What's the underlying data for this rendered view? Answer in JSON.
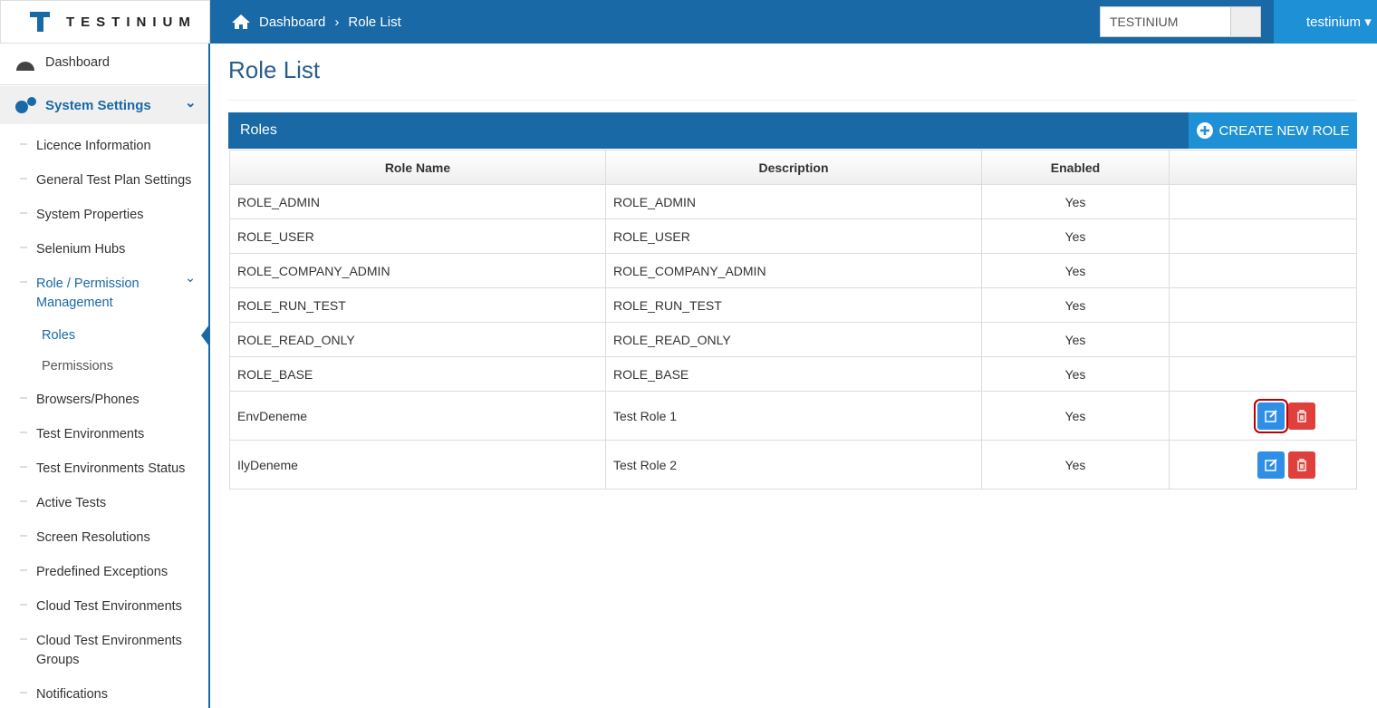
{
  "header": {
    "logo": "TESTINIUM",
    "breadcrumb": [
      "Dashboard",
      "Role List"
    ],
    "company_select": "TESTINIUM",
    "user": "testinium"
  },
  "sidebar": {
    "dashboard": "Dashboard",
    "section": "System Settings",
    "items": [
      {
        "label": "Licence Information"
      },
      {
        "label": "General Test Plan Settings"
      },
      {
        "label": "System Properties"
      },
      {
        "label": "Selenium Hubs"
      },
      {
        "label": "Role / Permission Management",
        "children": [
          "Roles",
          "Permissions"
        ]
      },
      {
        "label": "Browsers/Phones"
      },
      {
        "label": "Test Environments"
      },
      {
        "label": "Test Environments Status"
      },
      {
        "label": "Active Tests"
      },
      {
        "label": "Screen Resolutions"
      },
      {
        "label": "Predefined Exceptions"
      },
      {
        "label": "Cloud Test Environments"
      },
      {
        "label": "Cloud Test Environments Groups"
      },
      {
        "label": "Notifications"
      }
    ]
  },
  "page": {
    "title": "Role List",
    "panel_title": "Roles",
    "create_button": "CREATE NEW ROLE",
    "table": {
      "columns": [
        "Role Name",
        "Description",
        "Enabled"
      ],
      "rows": [
        {
          "cells": [
            "ROLE_ADMIN",
            "ROLE_ADMIN",
            "Yes"
          ],
          "actions": false
        },
        {
          "cells": [
            "ROLE_USER",
            "ROLE_USER",
            "Yes"
          ],
          "actions": false
        },
        {
          "cells": [
            "ROLE_COMPANY_ADMIN",
            "ROLE_COMPANY_ADMIN",
            "Yes"
          ],
          "actions": false
        },
        {
          "cells": [
            "ROLE_RUN_TEST",
            "ROLE_RUN_TEST",
            "Yes"
          ],
          "actions": false
        },
        {
          "cells": [
            "ROLE_READ_ONLY",
            "ROLE_READ_ONLY",
            "Yes"
          ],
          "actions": false
        },
        {
          "cells": [
            "ROLE_BASE",
            "ROLE_BASE",
            "Yes"
          ],
          "actions": false
        },
        {
          "cells": [
            "EnvDeneme",
            "Test Role 1",
            "Yes"
          ],
          "actions": true
        },
        {
          "cells": [
            "IlyDeneme",
            "Test Role 2",
            "Yes"
          ],
          "actions": true
        }
      ]
    }
  }
}
